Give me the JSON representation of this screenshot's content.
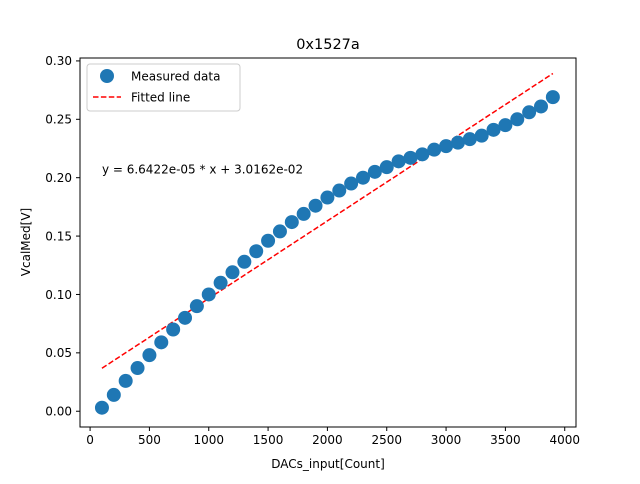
{
  "chart_data": {
    "type": "scatter",
    "title": "0x1527a",
    "xlabel": "DACs_input[Count]",
    "ylabel": "VcalMed[V]",
    "xlim": [
      -85,
      4095
    ],
    "ylim": [
      -0.0135,
      0.3025
    ],
    "xticks": [
      0,
      500,
      1000,
      1500,
      2000,
      2500,
      3000,
      3500,
      4000
    ],
    "yticks": [
      0.0,
      0.05,
      0.1,
      0.15,
      0.2,
      0.25,
      0.3
    ],
    "xtick_labels": [
      "0",
      "500",
      "1000",
      "1500",
      "2000",
      "2500",
      "3000",
      "3500",
      "4000"
    ],
    "ytick_labels": [
      "0.00",
      "0.05",
      "0.10",
      "0.15",
      "0.20",
      "0.25",
      "0.30"
    ],
    "grid": false,
    "legend_position": "top-left",
    "annotation": "y = 6.6422e-05 * x + 3.0162e-02",
    "annotation_anchor": [
      100,
      0.2035
    ],
    "series": [
      {
        "name": "Measured data",
        "style": "markers",
        "color": "#1f77b4",
        "x": [
          100,
          200,
          300,
          400,
          500,
          600,
          700,
          800,
          900,
          1000,
          1100,
          1200,
          1300,
          1400,
          1500,
          1600,
          1700,
          1800,
          1900,
          2000,
          2100,
          2200,
          2300,
          2400,
          2500,
          2600,
          2700,
          2800,
          2900,
          3000,
          3100,
          3200,
          3300,
          3400,
          3500,
          3600,
          3700,
          3800,
          3900
        ],
        "y": [
          0.003,
          0.014,
          0.026,
          0.037,
          0.048,
          0.059,
          0.07,
          0.08,
          0.09,
          0.1,
          0.11,
          0.119,
          0.128,
          0.137,
          0.146,
          0.154,
          0.162,
          0.169,
          0.176,
          0.183,
          0.189,
          0.195,
          0.2,
          0.205,
          0.209,
          0.214,
          0.217,
          0.22,
          0.224,
          0.227,
          0.23,
          0.233,
          0.236,
          0.241,
          0.245,
          0.25,
          0.256,
          0.261,
          0.269
        ]
      },
      {
        "name": "Fitted line",
        "style": "dashed-line",
        "color": "#ff0000",
        "slope": 6.6422e-05,
        "intercept": 0.030162,
        "x": [
          100,
          3900
        ],
        "y": [
          0.0368,
          0.28921
        ]
      }
    ]
  }
}
